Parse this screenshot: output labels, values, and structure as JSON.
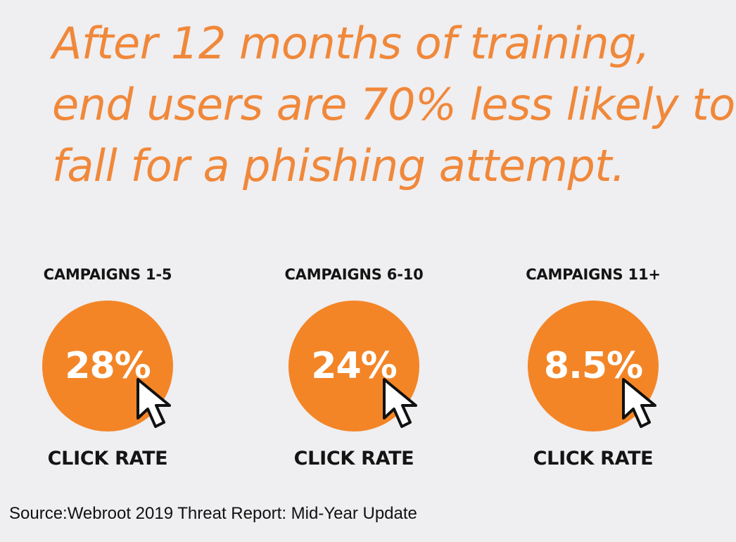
{
  "headline": {
    "lines": [
      "After 12 months of training,",
      "end users are 70% less likely to",
      "fall for a phishing attempt."
    ]
  },
  "stats": [
    {
      "heading": "CAMPAIGNS 1-5",
      "value": "28%",
      "label": "CLICK RATE"
    },
    {
      "heading": "CAMPAIGNS 6-10",
      "value": "24%",
      "label": "CLICK RATE"
    },
    {
      "heading": "CAMPAIGNS 11+",
      "value": "8.5%",
      "label": "CLICK RATE"
    }
  ],
  "source": "Source:Webroot 2019 Threat Report: Mid-Year Update",
  "colors": {
    "background": "#efeef0",
    "headline": "#f0883a",
    "circle": "#f38527",
    "text": "#141414"
  },
  "icons": [
    "pointer-cursor-icon"
  ]
}
